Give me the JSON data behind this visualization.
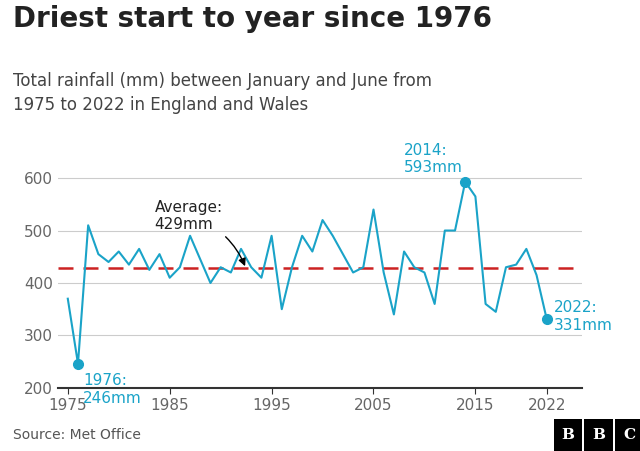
{
  "title": "Driest start to year since 1976",
  "subtitle": "Total rainfall (mm) between January and June from\n1975 to 2022 in England and Wales",
  "source": "Source: Met Office",
  "years": [
    1975,
    1976,
    1977,
    1978,
    1979,
    1980,
    1981,
    1982,
    1983,
    1984,
    1985,
    1986,
    1987,
    1988,
    1989,
    1990,
    1991,
    1992,
    1993,
    1994,
    1995,
    1996,
    1997,
    1998,
    1999,
    2000,
    2001,
    2002,
    2003,
    2004,
    2005,
    2006,
    2007,
    2008,
    2009,
    2010,
    2011,
    2012,
    2013,
    2014,
    2015,
    2016,
    2017,
    2018,
    2019,
    2020,
    2021,
    2022
  ],
  "values": [
    370,
    246,
    510,
    455,
    440,
    460,
    435,
    465,
    425,
    455,
    410,
    430,
    490,
    445,
    400,
    430,
    420,
    465,
    430,
    410,
    490,
    350,
    430,
    490,
    460,
    520,
    490,
    455,
    420,
    430,
    540,
    420,
    340,
    460,
    430,
    420,
    360,
    500,
    500,
    593,
    565,
    360,
    345,
    430,
    435,
    465,
    415,
    331
  ],
  "average": 429,
  "highlight_years": [
    1976,
    2014,
    2022
  ],
  "highlight_vals": [
    246,
    593,
    331
  ],
  "line_color": "#1aa3c8",
  "avg_line_color": "#cc2222",
  "dot_color": "#1aa3c8",
  "annotation_color": "#1aa3c8",
  "avg_annotation_color": "#222222",
  "ylim": [
    200,
    630
  ],
  "yticks": [
    200,
    300,
    400,
    500,
    600
  ],
  "xticks": [
    1975,
    1985,
    1995,
    2005,
    2015,
    2022
  ],
  "xlim": [
    1974.0,
    2025.5
  ],
  "background_color": "#ffffff",
  "grid_color": "#cccccc",
  "title_fontsize": 20,
  "subtitle_fontsize": 12,
  "axis_fontsize": 11,
  "annotation_fontsize": 11
}
